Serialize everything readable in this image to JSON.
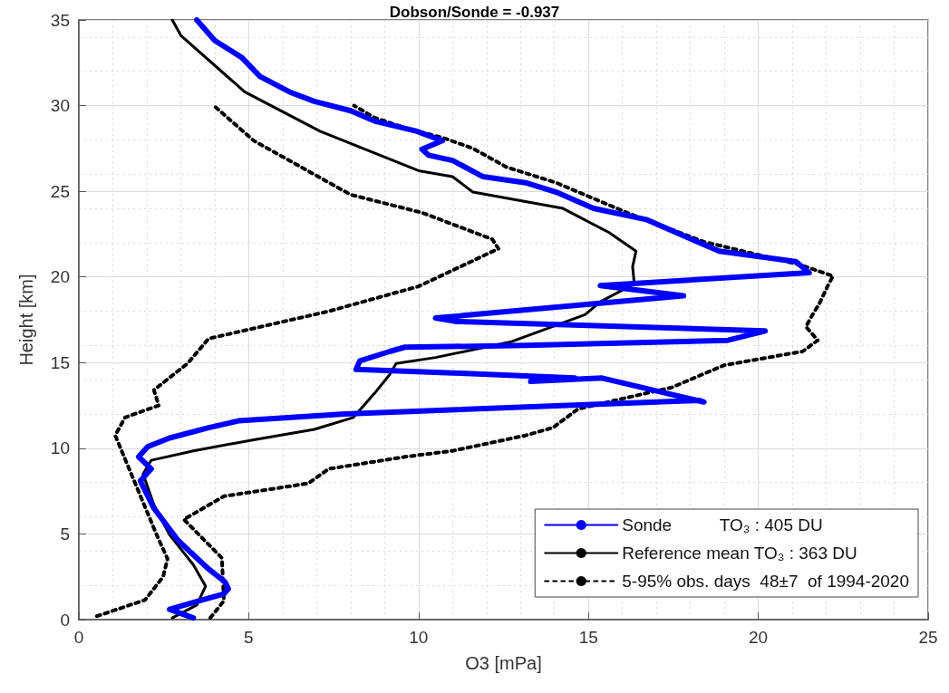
{
  "chart_data": {
    "type": "line",
    "title": "Dobson/Sonde = -0.937",
    "xlabel": "O3 [mPa]",
    "ylabel": "Height [km]",
    "xlim": [
      0,
      25
    ],
    "xticks": [
      0,
      5,
      10,
      15,
      20,
      25
    ],
    "ylim": [
      0,
      35
    ],
    "yticks": [
      0,
      5,
      10,
      15,
      20,
      25,
      30,
      35
    ],
    "grid": true,
    "legend": "bottom right",
    "marker": "none",
    "series": [
      {
        "name": "Sonde          TO₃ : 405 DU",
        "color": "#0000ff",
        "line_style": "solid",
        "x": [
          3.37,
          2.67,
          3.55,
          4.27,
          4.4,
          4.3,
          3.82,
          2.93,
          2.21,
          1.81,
          2.13,
          1.76,
          2.03,
          2.67,
          3.82,
          4.7,
          7.82,
          18.25,
          18.4,
          16.9,
          15.4,
          13.3,
          14.6,
          11.0,
          8.16,
          8.27,
          9.15,
          9.6,
          13.15,
          19.1,
          20.2,
          11.1,
          10.5,
          11.6,
          17.8,
          15.35,
          21.5,
          21.1,
          18.85,
          16.7,
          15.15,
          14.05,
          13.15,
          11.9,
          11.0,
          10.3,
          10.1,
          10.7,
          9.95,
          8.7,
          8.0,
          6.93,
          6.2,
          5.33,
          4.8,
          4.0,
          3.47
        ],
        "values": [
          0.1,
          0.6,
          1.1,
          1.5,
          1.8,
          2.2,
          2.95,
          4.6,
          6.5,
          8.1,
          8.8,
          9.5,
          10.1,
          10.6,
          11.2,
          11.6,
          12.0,
          12.8,
          12.7,
          13.4,
          14.1,
          13.9,
          14.1,
          14.4,
          14.6,
          15.1,
          15.65,
          15.9,
          16.0,
          16.3,
          16.85,
          17.4,
          17.6,
          17.8,
          18.9,
          19.5,
          20.25,
          20.9,
          21.5,
          23.35,
          24.0,
          24.95,
          25.5,
          25.85,
          26.8,
          27.1,
          27.45,
          27.95,
          28.5,
          29.1,
          29.7,
          30.25,
          30.8,
          31.7,
          32.8,
          33.8,
          35
        ]
      },
      {
        "name": "Reference mean TO₃ : 363 DU",
        "color": "#000000",
        "line_style": "solid",
        "x": [
          2.75,
          3.47,
          3.73,
          3.37,
          2.67,
          2.21,
          1.89,
          2.13,
          3.37,
          5.15,
          6.93,
          8.08,
          8.7,
          9.15,
          9.34,
          10.5,
          12.7,
          14.9,
          15.35,
          16.35,
          16.3,
          16.4,
          15.6,
          14.25,
          11.6,
          11.0,
          10.0,
          7.1,
          4.88,
          3.0,
          2.75
        ],
        "values": [
          0.1,
          0.85,
          1.95,
          3.2,
          4.95,
          6.7,
          8.5,
          9.3,
          9.85,
          10.5,
          11.1,
          11.8,
          13.2,
          14.3,
          14.95,
          15.3,
          16.2,
          17.8,
          18.55,
          19.6,
          20.6,
          21.5,
          22.6,
          24.0,
          24.95,
          25.85,
          26.2,
          28.5,
          30.8,
          34.1,
          35
        ]
      },
      {
        "name": "5-95% obs. days  48±7  of 1994-2020",
        "color": "#000000",
        "line_style": "dotted",
        "x": [
          0.53,
          1.95,
          2.48,
          2.61,
          2.29,
          1.07,
          1.36,
          2.35,
          2.21,
          3.2,
          3.82,
          5.15,
          7.36,
          10.0,
          12.35,
          12.17,
          10.1,
          8.0,
          5.15,
          4.0
        ],
        "values": [
          0.2,
          1.15,
          2.5,
          3.55,
          4.95,
          10.75,
          11.8,
          12.5,
          13.4,
          14.95,
          16.4,
          17.0,
          18.0,
          19.45,
          21.65,
          22.2,
          23.75,
          24.8,
          27.95,
          29.95
        ]
      },
      {
        "color": "#000000",
        "line_style": "dotted",
        "x": [
          3.87,
          4.27,
          4.21,
          3.09,
          4.27,
          6.75,
          7.36,
          9.6,
          11.0,
          13.15,
          13.95,
          14.7,
          17.45,
          19.0,
          21.3,
          21.75,
          21.4,
          21.6,
          21.8,
          22.05,
          22.2,
          21.25,
          18.4,
          16.2,
          14.05,
          12.6,
          11.6,
          10.75,
          9.6,
          8.7,
          8.1
        ],
        "values": [
          0.1,
          1.1,
          3.6,
          5.85,
          7.2,
          7.95,
          8.8,
          9.5,
          9.85,
          10.75,
          11.2,
          12.3,
          13.55,
          14.85,
          15.65,
          16.3,
          17.1,
          17.8,
          18.45,
          19.5,
          20.05,
          20.7,
          22.05,
          23.7,
          25.5,
          26.4,
          27.5,
          28.1,
          28.7,
          29.3,
          30.0
        ]
      }
    ]
  }
}
